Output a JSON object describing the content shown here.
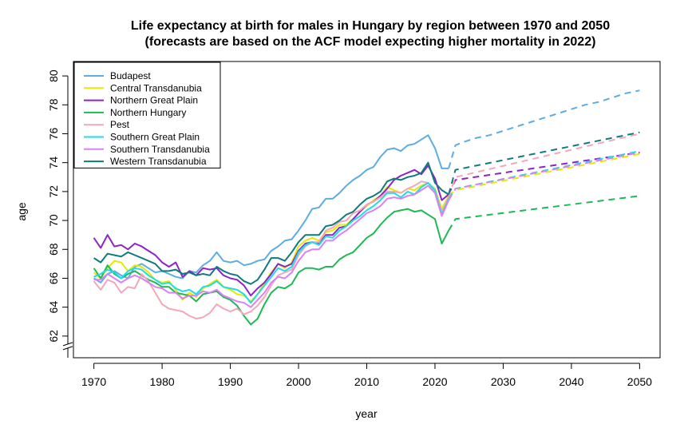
{
  "chart_data": {
    "type": "line",
    "title_lines": [
      "Life expectancy at birth for males in Hungary by region between 1970 and 2050",
      "(forecasts are based on the ACF model expecting higher mortality in 2022)"
    ],
    "xlabel": "year",
    "ylabel": "age",
    "xlim": [
      1967,
      2053
    ],
    "ylim": [
      60.5,
      81
    ],
    "x_ticks": [
      1970,
      1980,
      1990,
      2000,
      2010,
      2020,
      2030,
      2040,
      2050
    ],
    "y_ticks": [
      62,
      64,
      66,
      68,
      70,
      72,
      74,
      76,
      78,
      80
    ],
    "axis_break": true,
    "legend_position": "top-left",
    "forecast_start": 2022,
    "forecast_line_style": "dashed",
    "series": [
      {
        "name": "Budapest",
        "color": "#5DADE2",
        "x": [
          1970,
          1971,
          1972,
          1973,
          1974,
          1975,
          1976,
          1977,
          1978,
          1979,
          1980,
          1981,
          1982,
          1983,
          1984,
          1985,
          1986,
          1987,
          1988,
          1989,
          1990,
          1991,
          1992,
          1993,
          1994,
          1995,
          1996,
          1997,
          1998,
          1999,
          2000,
          2001,
          2002,
          2003,
          2004,
          2005,
          2006,
          2007,
          2008,
          2009,
          2010,
          2011,
          2012,
          2013,
          2014,
          2015,
          2016,
          2017,
          2018,
          2019,
          2020,
          2021,
          2022
        ],
        "values": [
          66.0,
          65.7,
          66.3,
          66.5,
          66.2,
          66.0,
          66.8,
          67.0,
          66.7,
          66.4,
          66.5,
          66.3,
          66.1,
          66.0,
          66.5,
          66.4,
          66.9,
          67.2,
          67.8,
          67.2,
          67.1,
          67.2,
          66.9,
          67.0,
          67.2,
          67.3,
          67.9,
          68.2,
          68.6,
          68.7,
          69.3,
          70.0,
          70.8,
          70.9,
          71.5,
          71.5,
          71.9,
          72.4,
          72.8,
          73.1,
          73.5,
          73.7,
          74.4,
          74.9,
          75.0,
          74.8,
          75.2,
          75.3,
          75.6,
          75.9,
          75.0,
          73.6,
          73.6
        ],
        "forecast_x": [
          2022,
          2023,
          2024,
          2026,
          2028,
          2030,
          2032,
          2034,
          2036,
          2038,
          2040,
          2042,
          2044,
          2046,
          2048,
          2050
        ],
        "forecast_values": [
          73.6,
          75.2,
          75.4,
          75.7,
          75.9,
          76.2,
          76.5,
          76.8,
          77.1,
          77.4,
          77.7,
          78.0,
          78.2,
          78.5,
          78.8,
          79.0
        ]
      },
      {
        "name": "Central Transdanubia",
        "color": "#E8E800",
        "x": [
          1970,
          1971,
          1972,
          1973,
          1974,
          1975,
          1976,
          1977,
          1978,
          1979,
          1980,
          1981,
          1982,
          1983,
          1984,
          1985,
          1986,
          1987,
          1988,
          1989,
          1990,
          1991,
          1992,
          1993,
          1994,
          1995,
          1996,
          1997,
          1998,
          1999,
          2000,
          2001,
          2002,
          2003,
          2004,
          2005,
          2006,
          2007,
          2008,
          2009,
          2010,
          2011,
          2012,
          2013,
          2014,
          2015,
          2016,
          2017,
          2018,
          2019,
          2020,
          2021,
          2022
        ],
        "values": [
          66.4,
          66.0,
          66.7,
          67.2,
          67.1,
          66.5,
          66.9,
          66.8,
          66.4,
          65.9,
          65.7,
          65.8,
          65.2,
          64.5,
          65.0,
          64.7,
          65.3,
          65.6,
          65.9,
          65.4,
          65.2,
          64.9,
          64.8,
          64.4,
          64.9,
          65.7,
          66.4,
          67.0,
          66.7,
          67.1,
          68.2,
          68.6,
          68.8,
          68.6,
          69.2,
          69.3,
          69.7,
          69.7,
          70.1,
          70.6,
          71.0,
          71.4,
          71.7,
          72.3,
          72.1,
          71.9,
          72.2,
          72.1,
          72.4,
          72.6,
          72.2,
          70.8,
          71.7
        ],
        "forecast_x": [
          2022,
          2023,
          2050
        ],
        "forecast_values": [
          71.7,
          72.1,
          74.6
        ]
      },
      {
        "name": "Northern Great Plain",
        "color": "#8E24C8",
        "x": [
          1970,
          1971,
          1972,
          1973,
          1974,
          1975,
          1976,
          1977,
          1978,
          1979,
          1980,
          1981,
          1982,
          1983,
          1984,
          1985,
          1986,
          1987,
          1988,
          1989,
          1990,
          1991,
          1992,
          1993,
          1994,
          1995,
          1996,
          1997,
          1998,
          1999,
          2000,
          2001,
          2002,
          2003,
          2004,
          2005,
          2006,
          2007,
          2008,
          2009,
          2010,
          2011,
          2012,
          2013,
          2014,
          2015,
          2016,
          2017,
          2018,
          2019,
          2020,
          2021,
          2022
        ],
        "values": [
          68.8,
          68.1,
          69.0,
          68.2,
          68.3,
          68.0,
          68.4,
          68.2,
          67.9,
          67.6,
          67.1,
          66.8,
          67.1,
          66.1,
          66.5,
          66.2,
          66.7,
          66.6,
          66.7,
          66.2,
          66.0,
          65.9,
          65.5,
          64.8,
          65.3,
          65.7,
          66.3,
          67.0,
          66.8,
          67.0,
          67.9,
          68.4,
          68.5,
          68.4,
          69.0,
          69.0,
          69.5,
          69.6,
          70.1,
          70.6,
          71.1,
          71.3,
          71.7,
          72.2,
          72.8,
          73.1,
          73.3,
          73.5,
          73.2,
          73.8,
          72.9,
          71.4,
          71.8
        ],
        "forecast_x": [
          2022,
          2023,
          2050
        ],
        "forecast_values": [
          71.8,
          72.8,
          74.7
        ]
      },
      {
        "name": "Northern Hungary",
        "color": "#1DB954",
        "x": [
          1970,
          1971,
          1972,
          1973,
          1974,
          1975,
          1976,
          1977,
          1978,
          1979,
          1980,
          1981,
          1982,
          1983,
          1984,
          1985,
          1986,
          1987,
          1988,
          1989,
          1990,
          1991,
          1992,
          1993,
          1994,
          1995,
          1996,
          1997,
          1998,
          1999,
          2000,
          2001,
          2002,
          2003,
          2004,
          2005,
          2006,
          2007,
          2008,
          2009,
          2010,
          2011,
          2012,
          2013,
          2014,
          2015,
          2016,
          2017,
          2018,
          2019,
          2020,
          2021,
          2022
        ],
        "values": [
          66.7,
          66.0,
          66.9,
          66.3,
          66.0,
          66.3,
          66.5,
          66.2,
          65.9,
          65.7,
          65.4,
          65.4,
          65.0,
          64.9,
          64.8,
          64.4,
          64.9,
          65.0,
          65.1,
          64.7,
          64.5,
          64.1,
          63.4,
          62.8,
          63.2,
          64.2,
          65.0,
          65.4,
          65.3,
          65.6,
          66.4,
          66.7,
          66.7,
          66.6,
          66.8,
          66.8,
          67.3,
          67.6,
          67.8,
          68.3,
          68.8,
          69.1,
          69.7,
          70.2,
          70.6,
          70.7,
          70.8,
          70.6,
          70.7,
          70.4,
          70.1,
          68.4,
          69.3
        ],
        "forecast_x": [
          2022,
          2023,
          2050
        ],
        "forecast_values": [
          69.3,
          70.1,
          71.7
        ]
      },
      {
        "name": "Pest",
        "color": "#F4A7B9",
        "x": [
          1970,
          1971,
          1972,
          1973,
          1974,
          1975,
          1976,
          1977,
          1978,
          1979,
          1980,
          1981,
          1982,
          1983,
          1984,
          1985,
          1986,
          1987,
          1988,
          1989,
          1990,
          1991,
          1992,
          1993,
          1994,
          1995,
          1996,
          1997,
          1998,
          1999,
          2000,
          2001,
          2002,
          2003,
          2004,
          2005,
          2006,
          2007,
          2008,
          2009,
          2010,
          2011,
          2012,
          2013,
          2014,
          2015,
          2016,
          2017,
          2018,
          2019,
          2020,
          2021,
          2022
        ],
        "values": [
          65.8,
          65.2,
          65.9,
          65.7,
          65.0,
          65.4,
          65.3,
          66.3,
          65.8,
          65.0,
          64.2,
          63.9,
          63.8,
          63.7,
          63.4,
          63.2,
          63.3,
          63.6,
          64.2,
          63.9,
          63.7,
          63.9,
          63.5,
          63.7,
          64.1,
          64.7,
          65.5,
          66.2,
          66.4,
          66.6,
          67.6,
          68.2,
          68.5,
          68.5,
          69.3,
          69.5,
          69.9,
          70.0,
          70.5,
          70.7,
          71.1,
          71.3,
          71.6,
          72.0,
          72.0,
          71.9,
          72.2,
          72.4,
          72.7,
          72.6,
          72.0,
          70.6,
          71.6
        ],
        "forecast_x": [
          2022,
          2023,
          2050
        ],
        "forecast_values": [
          71.6,
          73.0,
          76.0
        ]
      },
      {
        "name": "Southern Great Plain",
        "color": "#1EDCE8",
        "x": [
          1970,
          1971,
          1972,
          1973,
          1974,
          1975,
          1976,
          1977,
          1978,
          1979,
          1980,
          1981,
          1982,
          1983,
          1984,
          1985,
          1986,
          1987,
          1988,
          1989,
          1990,
          1991,
          1992,
          1993,
          1994,
          1995,
          1996,
          1997,
          1998,
          1999,
          2000,
          2001,
          2002,
          2003,
          2004,
          2005,
          2006,
          2007,
          2008,
          2009,
          2010,
          2011,
          2012,
          2013,
          2014,
          2015,
          2016,
          2017,
          2018,
          2019,
          2020,
          2021,
          2022
        ],
        "values": [
          66.1,
          66.3,
          66.6,
          66.4,
          66.0,
          66.5,
          66.7,
          66.6,
          66.2,
          65.9,
          65.6,
          65.7,
          65.3,
          65.1,
          65.2,
          64.9,
          65.4,
          65.5,
          65.8,
          65.4,
          65.3,
          65.2,
          64.9,
          64.3,
          64.9,
          65.5,
          66.1,
          66.7,
          66.5,
          66.8,
          67.8,
          68.3,
          68.5,
          68.3,
          68.9,
          68.8,
          69.3,
          69.6,
          70.0,
          70.3,
          70.7,
          71.0,
          71.4,
          71.9,
          71.9,
          71.6,
          72.0,
          71.8,
          72.3,
          72.6,
          72.1,
          70.4,
          71.5
        ],
        "forecast_x": [
          2022,
          2023,
          2050
        ],
        "forecast_values": [
          71.5,
          72.2,
          74.8
        ]
      },
      {
        "name": "Southern Transdanubia",
        "color": "#D883F0",
        "x": [
          1970,
          1971,
          1972,
          1973,
          1974,
          1975,
          1976,
          1977,
          1978,
          1979,
          1980,
          1981,
          1982,
          1983,
          1984,
          1985,
          1986,
          1987,
          1988,
          1989,
          1990,
          1991,
          1992,
          1993,
          1994,
          1995,
          1996,
          1997,
          1998,
          1999,
          2000,
          2001,
          2002,
          2003,
          2004,
          2005,
          2006,
          2007,
          2008,
          2009,
          2010,
          2011,
          2012,
          2013,
          2014,
          2015,
          2016,
          2017,
          2018,
          2019,
          2020,
          2021,
          2022
        ],
        "values": [
          65.9,
          65.9,
          66.3,
          66.0,
          65.7,
          66.0,
          66.2,
          66.0,
          65.7,
          65.4,
          65.3,
          65.0,
          65.0,
          64.6,
          64.8,
          64.8,
          65.1,
          65.0,
          65.2,
          64.8,
          64.6,
          64.4,
          64.3,
          64.0,
          64.5,
          65.0,
          65.7,
          66.1,
          66.0,
          66.4,
          67.2,
          67.8,
          68.0,
          68.0,
          68.6,
          68.6,
          69.0,
          69.3,
          69.7,
          70.1,
          70.5,
          70.7,
          71.0,
          71.5,
          71.6,
          71.5,
          71.7,
          71.8,
          72.1,
          72.4,
          71.9,
          70.3,
          71.4
        ],
        "forecast_x": [
          2022,
          2023,
          2050
        ],
        "forecast_values": [
          71.4,
          72.2,
          74.7
        ]
      },
      {
        "name": "Western Transdanubia",
        "color": "#0E7C7B",
        "x": [
          1970,
          1971,
          1972,
          1973,
          1974,
          1975,
          1976,
          1977,
          1978,
          1979,
          1980,
          1981,
          1982,
          1983,
          1984,
          1985,
          1986,
          1987,
          1988,
          1989,
          1990,
          1991,
          1992,
          1993,
          1994,
          1995,
          1996,
          1997,
          1998,
          1999,
          2000,
          2001,
          2002,
          2003,
          2004,
          2005,
          2006,
          2007,
          2008,
          2009,
          2010,
          2011,
          2012,
          2013,
          2014,
          2015,
          2016,
          2017,
          2018,
          2019,
          2020,
          2021,
          2022
        ],
        "values": [
          67.4,
          67.1,
          67.7,
          67.6,
          67.5,
          67.8,
          67.6,
          67.4,
          67.2,
          67.0,
          66.5,
          66.5,
          66.6,
          66.3,
          66.4,
          66.2,
          66.3,
          66.2,
          66.8,
          66.5,
          66.3,
          66.2,
          65.8,
          65.6,
          65.9,
          66.6,
          67.4,
          67.4,
          67.2,
          67.8,
          68.5,
          69.0,
          69.0,
          69.0,
          69.6,
          69.7,
          70.0,
          70.4,
          70.6,
          71.1,
          71.5,
          71.7,
          72.0,
          72.7,
          72.9,
          72.8,
          73.0,
          73.1,
          73.3,
          74.0,
          72.6,
          72.1,
          71.8
        ],
        "forecast_x": [
          2022,
          2023,
          2050
        ],
        "forecast_values": [
          71.8,
          73.5,
          76.1
        ]
      }
    ]
  }
}
